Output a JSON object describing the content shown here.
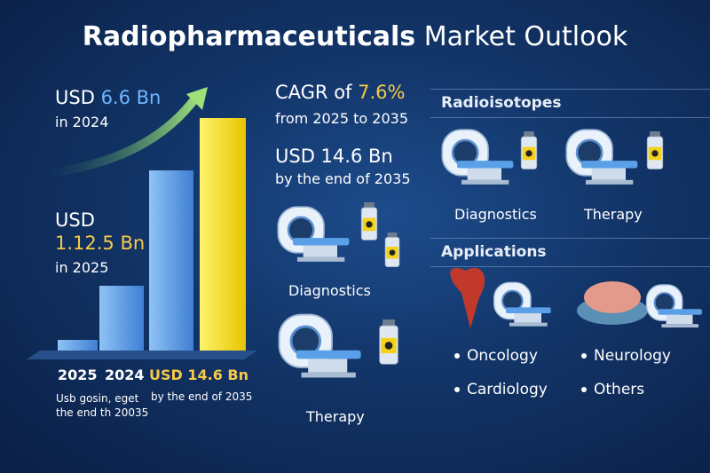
{
  "header": {
    "title_bold": "Radiopharmaceuticals",
    "title_rest": "Market Outlook"
  },
  "left": {
    "stat1_prefix": "USD",
    "stat1_value": "6.6 Bn",
    "stat1_year": "in 2024",
    "stat2_prefix": "USD",
    "stat2_value": "1.12.5 Bn",
    "stat2_year": "in 2025",
    "bar_labels": [
      "2025",
      "2024",
      "USD 14.6 Bn"
    ],
    "bar_note": "by the end of 2035",
    "footnote": [
      "Usb gosin, eget",
      "the end th 20035"
    ]
  },
  "middle": {
    "cagr_prefix": "CAGR of",
    "cagr_value": "7.6%",
    "cagr_period": "from 2025 to 2035",
    "forecast_value": "USD 14.6 Bn",
    "forecast_period": "by the end of 2035",
    "items": [
      "Diagnostics",
      "Therapy"
    ]
  },
  "right": {
    "radioisotopes": {
      "heading": "Radioisotopes",
      "items": [
        "Diagnostics",
        "Therapy"
      ]
    },
    "applications": {
      "heading": "Applications",
      "items": [
        "Oncology",
        "Neurology",
        "Cardiology",
        "Others"
      ]
    }
  }
}
